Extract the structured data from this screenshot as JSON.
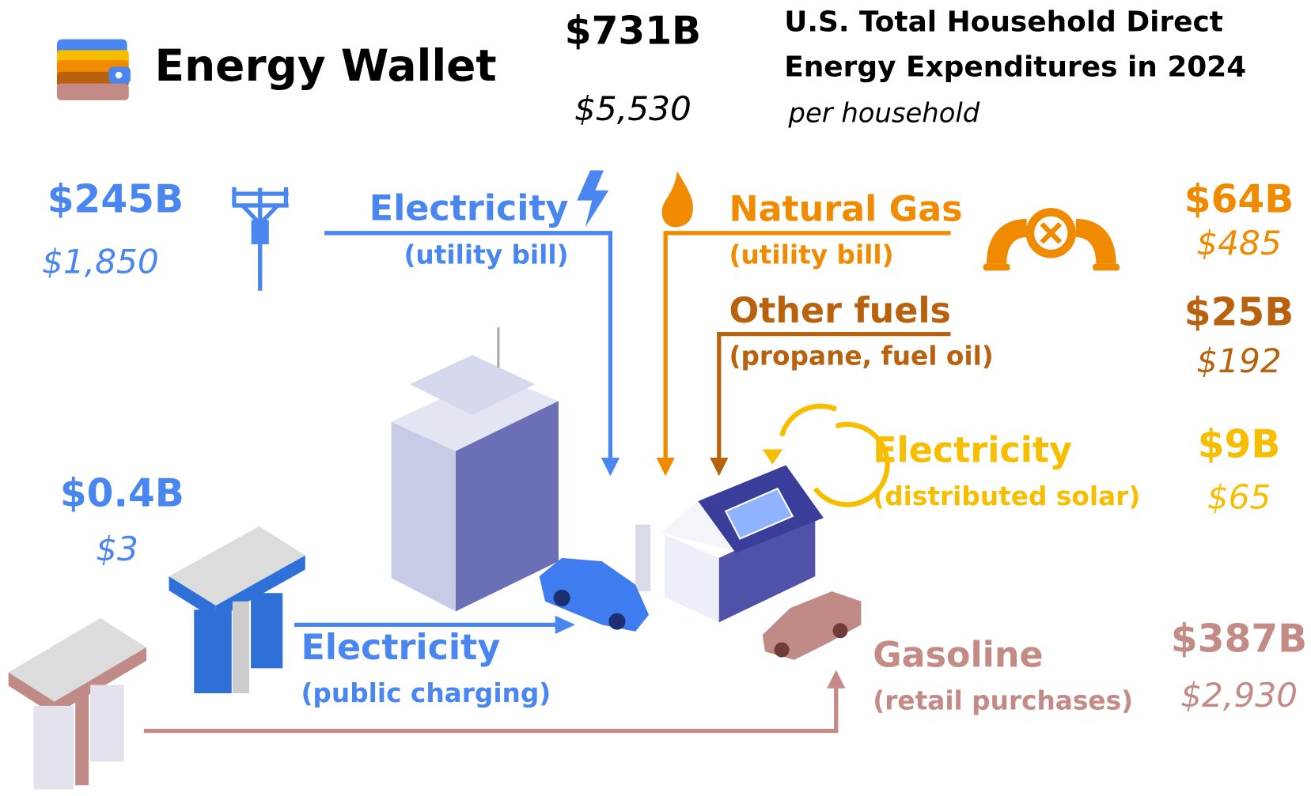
{
  "header": {
    "title": "Energy Wallet",
    "total": "$731B",
    "total_per_household": "$5,530",
    "subtitle_line1": "U.S. Total Household Direct",
    "subtitle_line2": "Energy Expenditures in 2024",
    "per_household_note": "per household"
  },
  "flows": [
    {
      "label": "Electricity",
      "sublabel": "(utility bill)",
      "total": "$245B",
      "per_household": "$1,850"
    },
    {
      "label": "Natural Gas",
      "sublabel": "(utility bill)",
      "total": "$64B",
      "per_household": "$485"
    },
    {
      "label": "Other fuels",
      "sublabel": "(propane, fuel oil)",
      "total": "$25B",
      "per_household": "$192"
    },
    {
      "label": "Electricity",
      "sublabel": "(distributed solar)",
      "total": "$9B",
      "per_household": "$65"
    },
    {
      "label": "Electricity",
      "sublabel": "(public charging)",
      "total": "$0.4B",
      "per_household": "$3"
    },
    {
      "label": "Gasoline",
      "sublabel": "(retail purchases)",
      "total": "$387B",
      "per_household": "$2,930"
    }
  ]
}
